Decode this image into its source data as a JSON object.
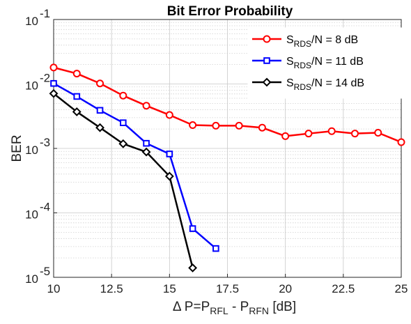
{
  "chart_data": {
    "type": "line",
    "title": "Bit Error Probability",
    "ylabel": "BER",
    "xlabel": {
      "main": "Δ P=P",
      "sub1": "RFL",
      "mid": " - P",
      "sub2": "RFN",
      "tail": " [dB]"
    },
    "xlim": [
      10,
      25
    ],
    "ylim": [
      1e-05,
      0.1
    ],
    "yscale": "log",
    "grid": true,
    "minor_grid": true,
    "legend_position": "top-right",
    "x_ticks": [
      {
        "value": 10,
        "label": "10"
      },
      {
        "value": 12.5,
        "label": "12.5"
      },
      {
        "value": 15,
        "label": "15"
      },
      {
        "value": 17.5,
        "label": "17.5"
      },
      {
        "value": 20,
        "label": "20"
      },
      {
        "value": 22.5,
        "label": "22.5"
      },
      {
        "value": 25,
        "label": "25"
      }
    ],
    "y_ticks": [
      {
        "value": 1e-05,
        "base": "10",
        "exp": "-5"
      },
      {
        "value": 0.0001,
        "base": "10",
        "exp": "-4"
      },
      {
        "value": 0.001,
        "base": "10",
        "exp": "-3"
      },
      {
        "value": 0.01,
        "base": "10",
        "exp": "-2"
      },
      {
        "value": 0.1,
        "base": "10",
        "exp": "-1"
      }
    ],
    "series": [
      {
        "label_main": "S",
        "label_sub": "RDS",
        "label_tail": "/N = 8 dB",
        "color": "#ff0000",
        "marker": "circle",
        "x": [
          10,
          11,
          12,
          13,
          14,
          15,
          16,
          17,
          18,
          19,
          20,
          21,
          22,
          23,
          24,
          25
        ],
        "y": [
          0.018,
          0.0145,
          0.0102,
          0.0066,
          0.0046,
          0.0033,
          0.0023,
          0.00225,
          0.00225,
          0.0021,
          0.00155,
          0.0017,
          0.00185,
          0.0017,
          0.00175,
          0.00125
        ]
      },
      {
        "label_main": "S",
        "label_sub": "RDS",
        "label_tail": "/N = 11 dB",
        "color": "#0000ff",
        "marker": "square",
        "x": [
          10,
          11,
          12,
          13,
          14,
          15,
          16,
          17
        ],
        "y": [
          0.0102,
          0.0064,
          0.0039,
          0.0025,
          0.0012,
          0.00082,
          5.7e-05,
          2.8e-05
        ]
      },
      {
        "label_main": "S",
        "label_sub": "RDS",
        "label_tail": "/N = 14 dB",
        "color": "#000000",
        "marker": "diamond",
        "x": [
          10,
          11,
          12,
          13,
          14,
          15,
          16
        ],
        "y": [
          0.0071,
          0.0037,
          0.0021,
          0.00118,
          0.00088,
          0.00037,
          1.4e-05
        ]
      }
    ]
  }
}
